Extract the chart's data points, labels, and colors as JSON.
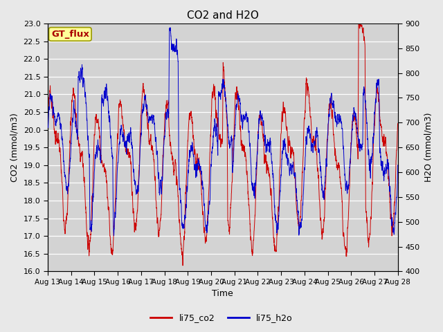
{
  "title": "CO2 and H2O",
  "xlabel": "Time",
  "ylabel_left": "CO2 (mmol/m3)",
  "ylabel_right": "H2O (mmol/m3)",
  "annotation": "GT_flux",
  "ylim_left": [
    16.0,
    23.0
  ],
  "ylim_right": [
    400,
    900
  ],
  "yticks_left": [
    16.0,
    16.5,
    17.0,
    17.5,
    18.0,
    18.5,
    19.0,
    19.5,
    20.0,
    20.5,
    21.0,
    21.5,
    22.0,
    22.5,
    23.0
  ],
  "yticks_right": [
    400,
    450,
    500,
    550,
    600,
    650,
    700,
    750,
    800,
    850,
    900
  ],
  "xtick_labels": [
    "Aug 13",
    "Aug 14",
    "Aug 15",
    "Aug 16",
    "Aug 17",
    "Aug 18",
    "Aug 19",
    "Aug 20",
    "Aug 21",
    "Aug 22",
    "Aug 23",
    "Aug 24",
    "Aug 25",
    "Aug 26",
    "Aug 27",
    "Aug 28"
  ],
  "color_co2": "#cc0000",
  "color_h2o": "#0000cc",
  "bg_color": "#e8e8e8",
  "plot_bg": "#d3d3d3",
  "legend_entries": [
    "li75_co2",
    "li75_h2o"
  ],
  "grid_color": "#ffffff",
  "n_points": 3000,
  "figsize": [
    6.4,
    4.8
  ],
  "dpi": 100
}
